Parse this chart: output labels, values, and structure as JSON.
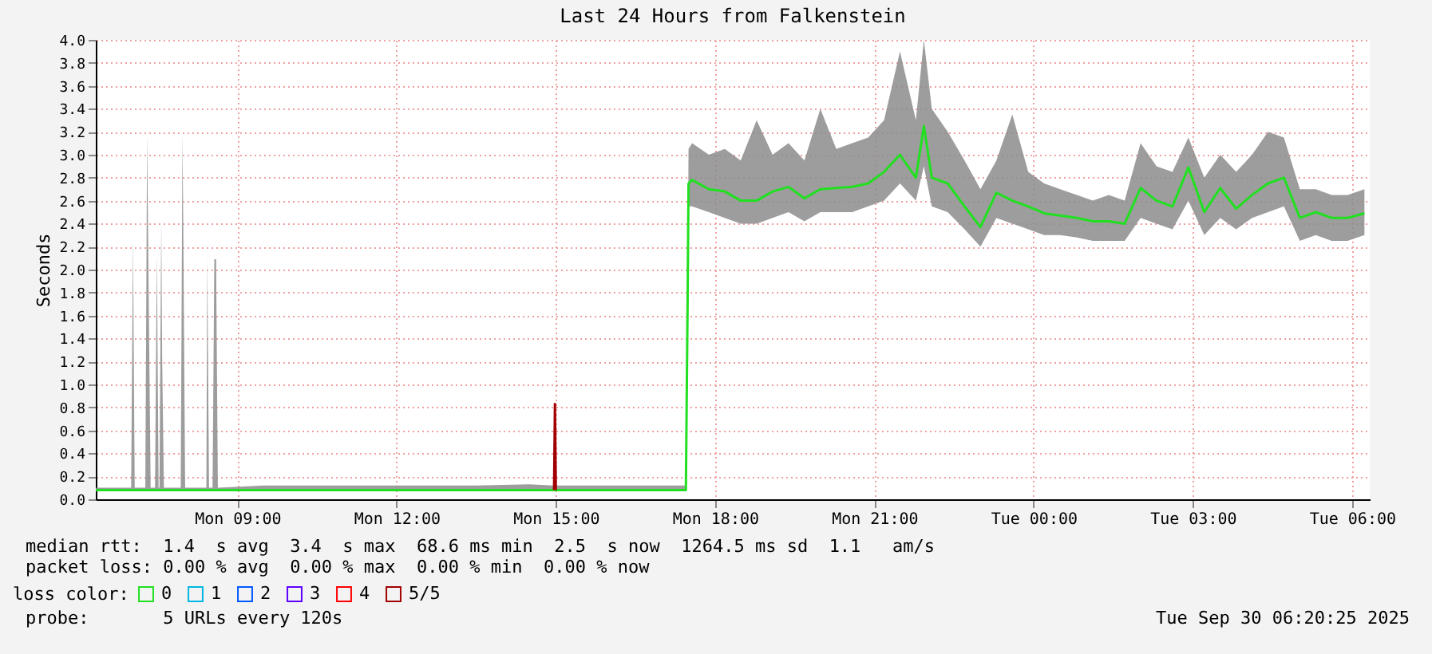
{
  "chart_data": {
    "type": "line",
    "title": "Last 24 Hours from Falkenstein",
    "ylabel": "Seconds",
    "legend_title": "loss color:",
    "legend": "bottom left",
    "grid": true,
    "xlim": [
      "2025-09-29T06:20",
      "2025-09-30T06:20"
    ],
    "xticks": [
      {
        "value": "2025-09-29T09:00",
        "label": "Mon 09:00"
      },
      {
        "value": "2025-09-29T12:00",
        "label": "Mon 12:00"
      },
      {
        "value": "2025-09-29T15:00",
        "label": "Mon 15:00"
      },
      {
        "value": "2025-09-29T18:00",
        "label": "Mon 18:00"
      },
      {
        "value": "2025-09-29T21:00",
        "label": "Mon 21:00"
      },
      {
        "value": "2025-09-30T00:00",
        "label": "Tue 00:00"
      },
      {
        "value": "2025-09-30T03:00",
        "label": "Tue 03:00"
      },
      {
        "value": "2025-09-30T06:00",
        "label": "Tue 06:00"
      }
    ],
    "ylim": [
      0,
      4
    ],
    "yticks": [
      {
        "value": 0,
        "label": "0.0"
      },
      0.2,
      0.4,
      0.6,
      0.8,
      {
        "value": 1,
        "label": "1.0"
      },
      1.2,
      1.4,
      1.6,
      1.8,
      {
        "value": 2,
        "label": "2.0"
      },
      2.2,
      2.4,
      2.6,
      2.8,
      {
        "value": 3,
        "label": "3.0"
      },
      3.2,
      3.4,
      3.6,
      3.8,
      {
        "value": 4,
        "label": "4.0"
      }
    ],
    "series": [
      {
        "name": "0",
        "color": "#20e020",
        "x": [
          "2025-09-29T06:20",
          "2025-09-29T07:00",
          "2025-09-29T07:02",
          "2025-09-29T07:04",
          "2025-09-29T07:16",
          "2025-09-29T07:18",
          "2025-09-29T07:20",
          "2025-09-29T07:22",
          "2025-09-29T07:27",
          "2025-09-29T07:29",
          "2025-09-29T07:31",
          "2025-09-29T07:32",
          "2025-09-29T07:34",
          "2025-09-29T07:35",
          "2025-09-29T07:37",
          "2025-09-29T07:56",
          "2025-09-29T07:58",
          "2025-09-29T07:59",
          "2025-09-29T08:01",
          "2025-09-29T08:25",
          "2025-09-29T08:26",
          "2025-09-29T08:28",
          "2025-09-29T08:32",
          "2025-09-29T08:34",
          "2025-09-29T08:36",
          "2025-09-29T08:38",
          "2025-09-29T09:30",
          "2025-09-29T10:30",
          "2025-09-29T11:30",
          "2025-09-29T12:30",
          "2025-09-29T13:30",
          "2025-09-29T14:30",
          "2025-09-29T14:57",
          "2025-09-29T15:00",
          "2025-09-29T16:00",
          "2025-09-29T17:00",
          "2025-09-29T17:27",
          "2025-09-29T17:29",
          "2025-09-29T17:30",
          "2025-09-29T17:34",
          "2025-09-29T17:53",
          "2025-09-29T18:11",
          "2025-09-29T18:29",
          "2025-09-29T18:47",
          "2025-09-29T19:05",
          "2025-09-29T19:23",
          "2025-09-29T19:41",
          "2025-09-29T19:59",
          "2025-09-29T20:17",
          "2025-09-29T20:35",
          "2025-09-29T20:53",
          "2025-09-29T21:11",
          "2025-09-29T21:29",
          "2025-09-29T21:47",
          "2025-09-29T21:56",
          "2025-09-29T22:05",
          "2025-09-29T22:23",
          "2025-09-29T22:42",
          "2025-09-29T23:00",
          "2025-09-29T23:18",
          "2025-09-29T23:36",
          "2025-09-29T23:54",
          "2025-09-30T00:12",
          "2025-09-30T00:30",
          "2025-09-30T00:49",
          "2025-09-30T01:07",
          "2025-09-30T01:25",
          "2025-09-30T01:43",
          "2025-09-30T02:01",
          "2025-09-30T02:19",
          "2025-09-30T02:37",
          "2025-09-30T02:55",
          "2025-09-30T03:13",
          "2025-09-30T03:31",
          "2025-09-30T03:49",
          "2025-09-30T04:07",
          "2025-09-30T04:25",
          "2025-09-30T04:43",
          "2025-09-30T05:01",
          "2025-09-30T05:19",
          "2025-09-30T05:37",
          "2025-09-30T05:55",
          "2025-09-30T06:14"
        ],
        "values": [
          0.08,
          0.08,
          0.08,
          0.08,
          0.08,
          0.08,
          0.08,
          0.08,
          0.08,
          0.08,
          0.08,
          0.08,
          0.08,
          0.08,
          0.08,
          0.08,
          0.08,
          0.08,
          0.08,
          0.08,
          0.08,
          0.08,
          0.08,
          0.08,
          0.08,
          0.08,
          0.08,
          0.08,
          0.08,
          0.08,
          0.08,
          0.08,
          0.08,
          0.08,
          0.08,
          0.08,
          0.08,
          1.75,
          2.75,
          2.78,
          2.7,
          2.68,
          2.6,
          2.6,
          2.68,
          2.72,
          2.62,
          2.7,
          2.71,
          2.72,
          2.75,
          2.85,
          3.0,
          2.8,
          3.25,
          2.8,
          2.75,
          2.55,
          2.37,
          2.67,
          2.6,
          2.55,
          2.49,
          2.47,
          2.45,
          2.42,
          2.42,
          2.4,
          2.71,
          2.6,
          2.55,
          2.89,
          2.5,
          2.71,
          2.53,
          2.65,
          2.75,
          2.8,
          2.45,
          2.5,
          2.45,
          2.45,
          2.49
        ],
        "lower": [
          0.07,
          0.07,
          0.07,
          0.07,
          0.07,
          0.07,
          0.07,
          0.07,
          0.07,
          0.07,
          0.07,
          0.07,
          0.07,
          0.07,
          0.07,
          0.07,
          0.07,
          0.07,
          0.07,
          0.07,
          0.07,
          0.07,
          0.07,
          0.07,
          0.07,
          0.07,
          0.07,
          0.07,
          0.07,
          0.07,
          0.07,
          0.07,
          0.07,
          0.07,
          0.07,
          0.07,
          0.07,
          1.75,
          2.55,
          2.55,
          2.5,
          2.45,
          2.4,
          2.4,
          2.45,
          2.5,
          2.42,
          2.5,
          2.5,
          2.5,
          2.55,
          2.6,
          2.75,
          2.6,
          2.9,
          2.55,
          2.5,
          2.35,
          2.2,
          2.45,
          2.4,
          2.35,
          2.3,
          2.3,
          2.28,
          2.25,
          2.25,
          2.25,
          2.45,
          2.4,
          2.35,
          2.6,
          2.3,
          2.45,
          2.35,
          2.45,
          2.5,
          2.55,
          2.25,
          2.3,
          2.25,
          2.25,
          2.3
        ],
        "upper": [
          0.1,
          0.1,
          2.26,
          0.1,
          0.1,
          3.18,
          1.63,
          0.1,
          0.1,
          2.15,
          0.1,
          0.1,
          2.42,
          1.24,
          0.1,
          0.1,
          3.18,
          2.26,
          0.1,
          0.1,
          2.1,
          0.1,
          0.1,
          2.09,
          2.09,
          0.1,
          0.12,
          0.12,
          0.12,
          0.12,
          0.12,
          0.13,
          0.12,
          0.12,
          0.12,
          0.12,
          0.12,
          1.75,
          3.05,
          3.1,
          3.0,
          3.05,
          2.95,
          3.3,
          3.0,
          3.1,
          2.95,
          3.4,
          3.05,
          3.1,
          3.15,
          3.3,
          3.9,
          3.3,
          4.0,
          3.4,
          3.2,
          2.95,
          2.7,
          2.95,
          3.35,
          2.85,
          2.75,
          2.7,
          2.65,
          2.6,
          2.65,
          2.6,
          3.1,
          2.9,
          2.85,
          3.15,
          2.8,
          3.0,
          2.85,
          3.0,
          3.2,
          3.15,
          2.7,
          2.7,
          2.65,
          2.65,
          2.7
        ]
      },
      {
        "name": "1",
        "color": "#00b7e4"
      },
      {
        "name": "2",
        "color": "#0059ff"
      },
      {
        "name": "3",
        "color": "#5e00ff"
      },
      {
        "name": "4",
        "color": "#ff0000"
      },
      {
        "name": "5/5",
        "color": "#a10000",
        "x": [
          "2025-09-29T14:58",
          "2025-09-29T14:59",
          "2025-09-29T15:00"
        ],
        "values": [
          0.08,
          0.83,
          0.08
        ]
      }
    ],
    "annotations": [
      "median rtt:  1.4  s avg  3.4  s max  68.6 ms min  2.5  s now  1264.5 ms sd  1.1   am/s",
      "packet loss: 0.00 % avg  0.00 % max  0.00 % min  0.00 % now",
      "probe:       5 URLs every 120s",
      "Tue Sep 30 06:20:25 2025"
    ]
  }
}
